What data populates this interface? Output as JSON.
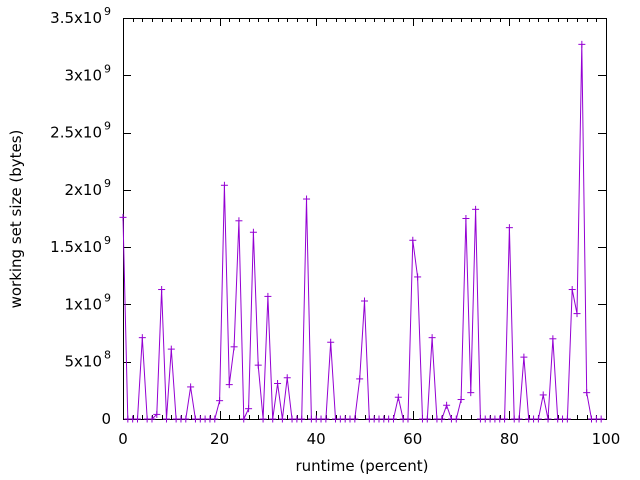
{
  "chart_data": {
    "type": "line",
    "xlabel": "runtime (percent)",
    "ylabel": "working set size (bytes)",
    "xlim": [
      0,
      100
    ],
    "ylim": [
      0,
      3500000000
    ],
    "grid": false,
    "line_color": "#9400d3",
    "marker": "plus",
    "x_ticks": [
      {
        "value": 0,
        "label": "0"
      },
      {
        "value": 20,
        "label": "20"
      },
      {
        "value": 40,
        "label": "40"
      },
      {
        "value": 60,
        "label": "60"
      },
      {
        "value": 80,
        "label": "80"
      },
      {
        "value": 100,
        "label": "100"
      }
    ],
    "y_ticks": [
      {
        "value": 0,
        "mantissa": "0",
        "exp": ""
      },
      {
        "value": 500000000,
        "mantissa": "5x10",
        "exp": "8"
      },
      {
        "value": 1000000000,
        "mantissa": "1x10",
        "exp": "9"
      },
      {
        "value": 1500000000,
        "mantissa": "1.5x10",
        "exp": "9"
      },
      {
        "value": 2000000000,
        "mantissa": "2x10",
        "exp": "9"
      },
      {
        "value": 2500000000,
        "mantissa": "2.5x10",
        "exp": "9"
      },
      {
        "value": 3000000000,
        "mantissa": "3x10",
        "exp": "9"
      },
      {
        "value": 3500000000,
        "mantissa": "3.5x10",
        "exp": "9"
      }
    ],
    "x": [
      0,
      1,
      2,
      3,
      4,
      5,
      6,
      7,
      8,
      9,
      10,
      11,
      12,
      13,
      14,
      15,
      16,
      17,
      18,
      19,
      20,
      21,
      22,
      23,
      24,
      25,
      26,
      27,
      28,
      29,
      30,
      31,
      32,
      33,
      34,
      35,
      36,
      37,
      38,
      39,
      40,
      41,
      42,
      43,
      44,
      45,
      46,
      47,
      48,
      49,
      50,
      51,
      52,
      53,
      54,
      55,
      56,
      57,
      58,
      59,
      60,
      61,
      62,
      63,
      64,
      65,
      66,
      67,
      68,
      69,
      70,
      71,
      72,
      73,
      74,
      75,
      76,
      77,
      78,
      79,
      80,
      81,
      82,
      83,
      84,
      85,
      86,
      87,
      88,
      89,
      90,
      91,
      92,
      93,
      94,
      95,
      96,
      97,
      98,
      99
    ],
    "y": [
      1760000000,
      0,
      0,
      0,
      710000000,
      0,
      0,
      40000000,
      1130000000,
      0,
      610000000,
      0,
      0,
      0,
      280000000,
      0,
      0,
      0,
      0,
      0,
      160000000,
      2040000000,
      300000000,
      630000000,
      1730000000,
      0,
      90000000,
      1630000000,
      470000000,
      0,
      1070000000,
      0,
      310000000,
      0,
      360000000,
      0,
      0,
      0,
      1920000000,
      0,
      0,
      0,
      0,
      670000000,
      0,
      0,
      0,
      0,
      0,
      350000000,
      1030000000,
      0,
      0,
      0,
      0,
      0,
      0,
      190000000,
      0,
      0,
      1560000000,
      1240000000,
      0,
      0,
      710000000,
      0,
      0,
      120000000,
      0,
      0,
      170000000,
      1750000000,
      230000000,
      1830000000,
      0,
      0,
      0,
      0,
      0,
      0,
      1670000000,
      0,
      0,
      540000000,
      0,
      0,
      0,
      210000000,
      0,
      700000000,
      0,
      0,
      0,
      1130000000,
      920000000,
      3270000000,
      230000000,
      0,
      0,
      0
    ]
  }
}
